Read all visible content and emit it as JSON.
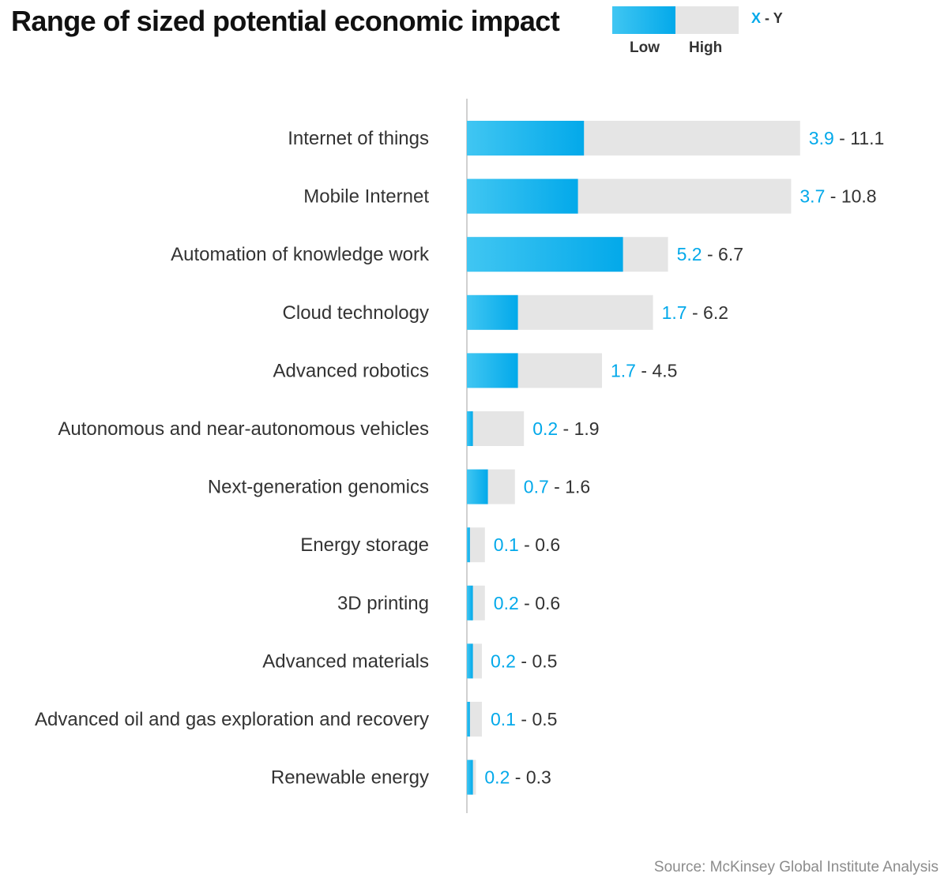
{
  "header": {
    "title": "Range of sized potential economic impact"
  },
  "legend": {
    "low_label": "Low",
    "high_label": "High",
    "x_label": "X",
    "separator": " - ",
    "y_label": "Y"
  },
  "colors": {
    "low_gradient_start": "#40c6f2",
    "low_gradient_end": "#03a9ea",
    "high": "#e5e5e5",
    "low_text": "#03a9ea",
    "high_text": "#333333",
    "axis": "#d0d0d0"
  },
  "chart_data": {
    "type": "bar",
    "orientation": "horizontal",
    "categories": [
      "Internet of things",
      "Mobile Internet",
      "Automation of knowledge work",
      "Cloud technology",
      "Advanced robotics",
      "Autonomous and near-autonomous vehicles",
      "Next-generation genomics",
      "Energy storage",
      "3D printing",
      "Advanced materials",
      "Advanced oil and gas exploration and recovery",
      "Renewable energy"
    ],
    "series": [
      {
        "name": "Low",
        "values": [
          3.9,
          3.7,
          5.2,
          1.7,
          1.7,
          0.2,
          0.7,
          0.1,
          0.2,
          0.2,
          0.1,
          0.2
        ]
      },
      {
        "name": "High",
        "values": [
          11.1,
          10.8,
          6.7,
          6.2,
          4.5,
          1.9,
          1.6,
          0.6,
          0.6,
          0.5,
          0.5,
          0.3
        ]
      }
    ],
    "xlim": [
      0,
      11.1
    ],
    "grid": false,
    "legend_position": "top-right"
  },
  "source": "Source: McKinsey Global Institute Analysis"
}
